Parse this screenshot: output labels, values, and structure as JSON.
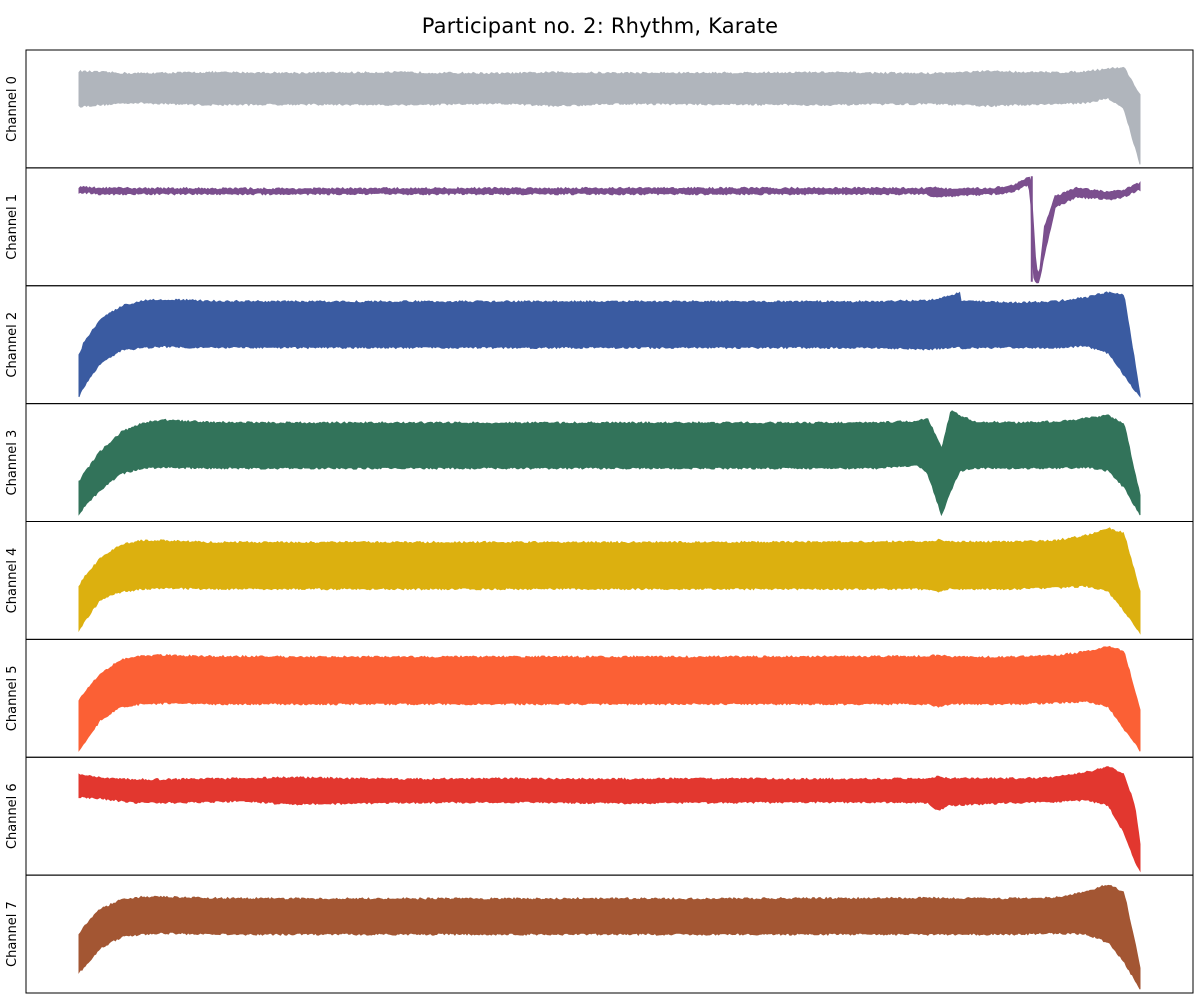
{
  "chart_data": {
    "type": "area",
    "title": "Participant no. 2: Rhythm, Karate",
    "xlabel": "",
    "ylabel": "",
    "x_ticks": "none",
    "y_ticks": "none",
    "grid": false,
    "legend": "none",
    "samples": 8192,
    "panels": [
      {
        "name": "Channel 0",
        "color": "#b0b5bc",
        "ylim": [
          -1,
          1
        ],
        "x": [
          0,
          0.05,
          0.12,
          0.2,
          0.3,
          0.4,
          0.45,
          0.5,
          0.6,
          0.7,
          0.8,
          0.86,
          0.9,
          0.93,
          0.95,
          0.97,
          0.985,
          1.0
        ],
        "upper": [
          0.68,
          0.64,
          0.66,
          0.65,
          0.66,
          0.64,
          0.66,
          0.65,
          0.65,
          0.66,
          0.64,
          0.68,
          0.66,
          0.66,
          0.68,
          0.73,
          0.75,
          0.25
        ],
        "lower": [
          0.05,
          0.12,
          0.08,
          0.09,
          0.08,
          0.1,
          0.06,
          0.1,
          0.09,
          0.08,
          0.1,
          0.06,
          0.09,
          0.1,
          0.12,
          0.2,
          0.0,
          -1.0
        ]
      },
      {
        "name": "Channel 1",
        "color": "#7b4f8e",
        "ylim": [
          -1,
          1
        ],
        "x": [
          0,
          0.02,
          0.2,
          0.4,
          0.6,
          0.8,
          0.805,
          0.82,
          0.86,
          0.88,
          0.895,
          0.897,
          0.899,
          0.902,
          0.905,
          0.91,
          0.92,
          0.94,
          0.97,
          0.985,
          1.0
        ],
        "upper": [
          0.72,
          0.7,
          0.69,
          0.7,
          0.7,
          0.7,
          0.72,
          0.68,
          0.7,
          0.75,
          0.9,
          0.88,
          0.2,
          -0.7,
          -0.9,
          0.0,
          0.55,
          0.7,
          0.63,
          0.67,
          0.8
        ],
        "lower": [
          0.63,
          0.6,
          0.6,
          0.6,
          0.6,
          0.6,
          0.55,
          0.56,
          0.6,
          0.63,
          0.78,
          0.5,
          -0.9,
          -1.0,
          -1.0,
          -0.5,
          0.35,
          0.55,
          0.5,
          0.55,
          0.68
        ],
        "spike": {
          "x": 0.898,
          "y_top": 0.92,
          "y_bottom": -1.0
        }
      },
      {
        "name": "Channel 2",
        "color": "#3a5ba1",
        "ylim": [
          -1,
          1
        ],
        "x": [
          0,
          0.005,
          0.02,
          0.04,
          0.06,
          0.08,
          0.12,
          0.2,
          0.4,
          0.6,
          0.75,
          0.8,
          0.82,
          0.83,
          0.8085,
          0.81,
          0.82,
          0.824,
          0.83,
          0.845,
          0.88,
          0.92,
          0.95,
          0.97,
          0.985,
          1.0
        ],
        "upper": [
          -0.2,
          0.05,
          0.45,
          0.7,
          0.8,
          0.82,
          0.79,
          0.78,
          0.78,
          0.78,
          0.78,
          0.8,
          0.88,
          0.95,
          0.95,
          -0.1,
          0.85,
          0.95,
          0.8,
          0.78,
          0.76,
          0.78,
          0.86,
          0.95,
          0.9,
          -0.9
        ],
        "lower": [
          -0.95,
          -0.75,
          -0.35,
          -0.1,
          -0.05,
          -0.03,
          -0.05,
          -0.05,
          -0.05,
          -0.05,
          -0.05,
          -0.08,
          -0.05,
          -0.02,
          -0.1,
          -0.15,
          -0.22,
          0.0,
          -0.08,
          -0.05,
          -0.05,
          -0.05,
          -0.02,
          -0.15,
          -0.55,
          -0.95
        ]
      },
      {
        "name": "Channel 3",
        "color": "#32735a",
        "ylim": [
          -1,
          1
        ],
        "x": [
          0,
          0.005,
          0.02,
          0.04,
          0.06,
          0.08,
          0.12,
          0.2,
          0.4,
          0.6,
          0.75,
          0.79,
          0.8,
          0.813,
          0.822,
          0.83,
          0.845,
          0.88,
          0.92,
          0.95,
          0.97,
          0.985,
          1.0
        ],
        "upper": [
          -0.35,
          -0.2,
          0.2,
          0.55,
          0.72,
          0.77,
          0.73,
          0.72,
          0.72,
          0.72,
          0.72,
          0.75,
          0.8,
          0.25,
          0.95,
          0.85,
          0.74,
          0.72,
          0.74,
          0.8,
          0.85,
          0.7,
          -0.6
        ],
        "lower": [
          -0.95,
          -0.8,
          -0.5,
          -0.2,
          -0.1,
          -0.08,
          -0.1,
          -0.1,
          -0.1,
          -0.1,
          -0.1,
          -0.05,
          -0.2,
          -0.95,
          -0.5,
          -0.15,
          -0.1,
          -0.1,
          -0.1,
          -0.08,
          -0.15,
          -0.45,
          -0.95
        ]
      },
      {
        "name": "Channel 4",
        "color": "#dcb00f",
        "ylim": [
          -1,
          1
        ],
        "x": [
          0,
          0.005,
          0.02,
          0.04,
          0.06,
          0.08,
          0.12,
          0.2,
          0.4,
          0.6,
          0.8,
          0.81,
          0.82,
          0.88,
          0.92,
          0.95,
          0.97,
          0.985,
          1.0
        ],
        "upper": [
          -0.1,
          0.05,
          0.4,
          0.65,
          0.72,
          0.72,
          0.69,
          0.69,
          0.69,
          0.69,
          0.7,
          0.73,
          0.7,
          0.7,
          0.72,
          0.82,
          0.95,
          0.85,
          -0.2
        ],
        "lower": [
          -0.9,
          -0.75,
          -0.35,
          -0.2,
          -0.15,
          -0.13,
          -0.15,
          -0.15,
          -0.15,
          -0.15,
          -0.15,
          -0.2,
          -0.15,
          -0.15,
          -0.13,
          -0.1,
          -0.2,
          -0.55,
          -0.95
        ]
      },
      {
        "name": "Channel 5",
        "color": "#fb6035",
        "ylim": [
          -1,
          1
        ],
        "x": [
          0,
          0.005,
          0.02,
          0.04,
          0.06,
          0.08,
          0.12,
          0.2,
          0.4,
          0.6,
          0.8,
          0.81,
          0.82,
          0.88,
          0.92,
          0.95,
          0.97,
          0.985,
          1.0
        ],
        "upper": [
          -0.05,
          0.1,
          0.45,
          0.7,
          0.77,
          0.78,
          0.76,
          0.75,
          0.75,
          0.75,
          0.76,
          0.78,
          0.75,
          0.75,
          0.77,
          0.85,
          0.95,
          0.85,
          -0.2
        ],
        "lower": [
          -0.95,
          -0.8,
          -0.4,
          -0.15,
          -0.1,
          -0.09,
          -0.1,
          -0.1,
          -0.1,
          -0.1,
          -0.1,
          -0.15,
          -0.1,
          -0.1,
          -0.08,
          -0.05,
          -0.15,
          -0.55,
          -0.95
        ]
      },
      {
        "name": "Channel 6",
        "color": "#e2372f",
        "ylim": [
          -1,
          1
        ],
        "x": [
          0,
          0.02,
          0.05,
          0.1,
          0.15,
          0.2,
          0.3,
          0.4,
          0.5,
          0.6,
          0.7,
          0.8,
          0.81,
          0.82,
          0.88,
          0.92,
          0.95,
          0.97,
          0.985,
          0.995,
          1.0
        ],
        "upper": [
          0.75,
          0.7,
          0.66,
          0.67,
          0.68,
          0.7,
          0.67,
          0.68,
          0.67,
          0.68,
          0.67,
          0.68,
          0.72,
          0.68,
          0.68,
          0.7,
          0.8,
          0.9,
          0.75,
          0.2,
          -0.5
        ],
        "lower": [
          0.35,
          0.33,
          0.25,
          0.25,
          0.28,
          0.22,
          0.25,
          0.26,
          0.24,
          0.25,
          0.26,
          0.25,
          0.1,
          0.2,
          0.25,
          0.27,
          0.3,
          0.2,
          -0.3,
          -0.8,
          -1.0
        ]
      },
      {
        "name": "Channel 7",
        "color": "#a35633",
        "ylim": [
          -1,
          1
        ],
        "x": [
          0,
          0.005,
          0.02,
          0.04,
          0.06,
          0.08,
          0.12,
          0.2,
          0.4,
          0.6,
          0.8,
          0.88,
          0.92,
          0.95,
          0.97,
          0.985,
          1.0
        ],
        "upper": [
          0.0,
          0.15,
          0.45,
          0.62,
          0.67,
          0.67,
          0.65,
          0.64,
          0.64,
          0.64,
          0.65,
          0.64,
          0.66,
          0.77,
          0.9,
          0.75,
          -0.6
        ],
        "lower": [
          -0.7,
          -0.6,
          -0.25,
          -0.05,
          0.0,
          0.02,
          0.0,
          0.0,
          0.0,
          0.0,
          0.0,
          0.0,
          0.02,
          0.0,
          -0.15,
          -0.5,
          -1.0
        ]
      }
    ]
  }
}
